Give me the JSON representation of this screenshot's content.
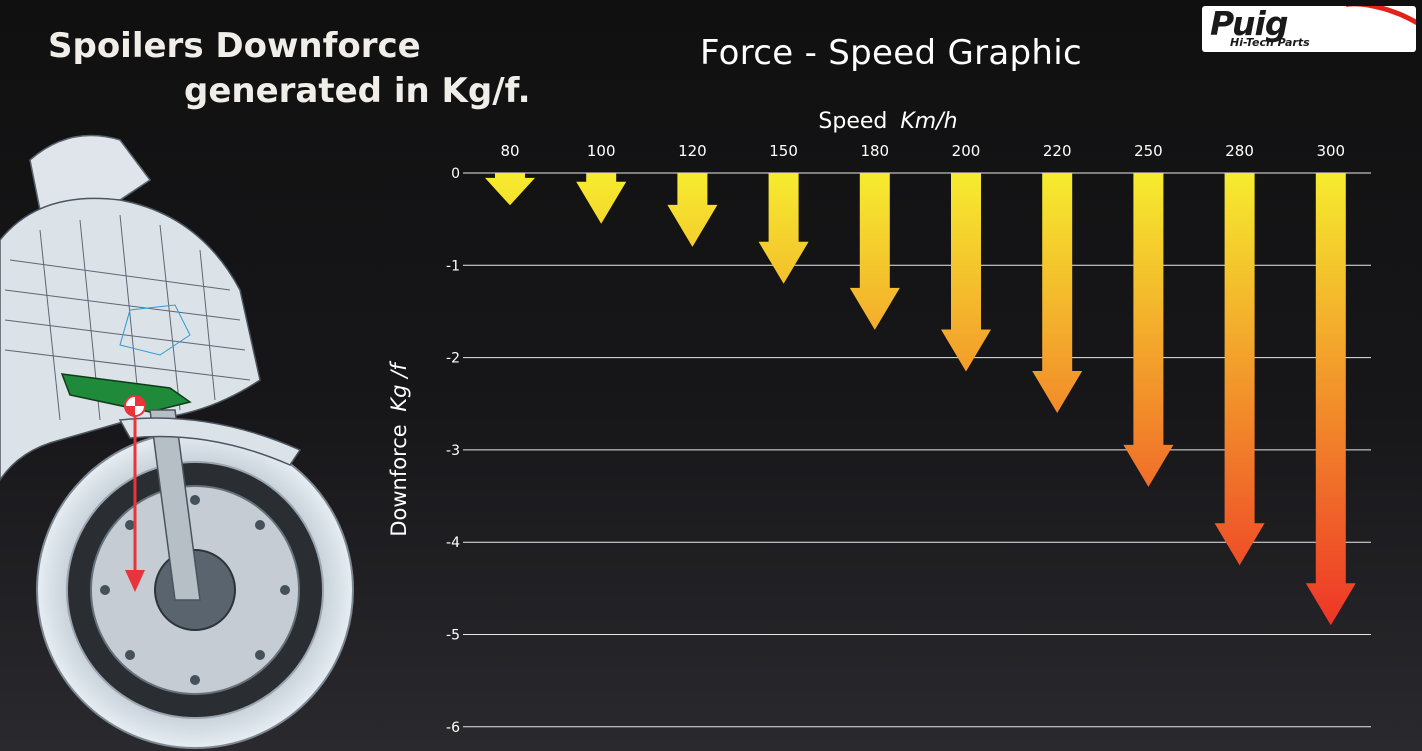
{
  "headline": {
    "line1": "Spoilers Downforce",
    "line2": "generated in Kg/f."
  },
  "logo": {
    "brand": "Puig",
    "tagline": "Hi-Tech Parts"
  },
  "chart_data": {
    "type": "bar",
    "title": "Force - Speed Graphic",
    "xlabel": "Speed",
    "xlabel_unit": "Km/h",
    "ylabel": "Downforce",
    "ylabel_unit": "Kg /f",
    "categories": [
      "80",
      "100",
      "120",
      "150",
      "180",
      "200",
      "220",
      "250",
      "280",
      "300"
    ],
    "values": [
      -0.35,
      -0.55,
      -0.8,
      -1.2,
      -1.7,
      -2.15,
      -2.6,
      -3.4,
      -4.25,
      -4.9
    ],
    "ylim": [
      -6,
      0
    ],
    "yticks": [
      "0",
      "-1",
      "-2",
      "-3",
      "-4",
      "-5",
      "-6"
    ],
    "grid": true,
    "x_axis_position": "top",
    "colors": {
      "top": "#f6ec2e",
      "bottom": "#ee3327",
      "grid": "#e8e8e8"
    }
  }
}
